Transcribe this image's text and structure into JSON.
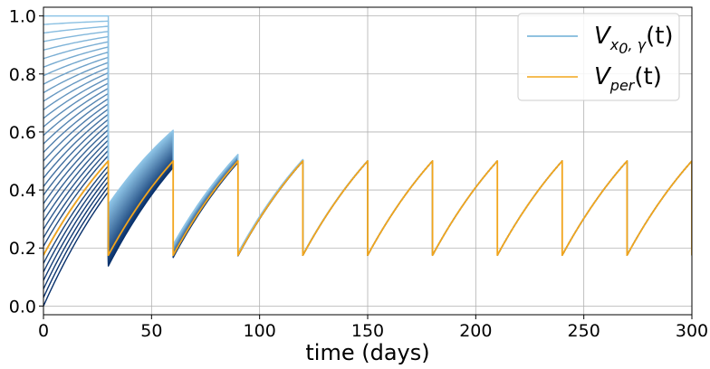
{
  "chart_data": {
    "type": "line",
    "xlabel": "time (days)",
    "ylabel": "",
    "xlim": [
      0,
      300
    ],
    "ylim": [
      -0.03,
      1.03
    ],
    "xticks": [
      0,
      50,
      100,
      150,
      200,
      250,
      300
    ],
    "xtick_labels": [
      "0",
      "50",
      "100",
      "150",
      "200",
      "250",
      "300"
    ],
    "yticks": [
      0.0,
      0.2,
      0.4,
      0.6,
      0.8,
      1.0
    ],
    "ytick_labels": [
      "0.0",
      "0.2",
      "0.4",
      "0.6",
      "0.8",
      "1.0"
    ],
    "grid": true,
    "legend_position": "top-right",
    "period_days": 30,
    "colors": {
      "family_light": "#8ec4e6",
      "family_dark": "#08306b",
      "per": "#f2a51c"
    },
    "series": [
      {
        "name": "V_{x0,γ}(t)",
        "legend_main": "V",
        "legend_sub": "x",
        "legend_subsub": "0",
        "legend_sub_rest": ", γ",
        "legend_tail": "(t)",
        "color": "#6baed6",
        "note": "family of 35 trajectories with initial values from 0.0 to 1.0; all converge to the periodic solution",
        "initial_values_range": [
          0.0,
          1.0
        ],
        "count": 35,
        "first_period_start_range": [
          0.0,
          0.92
        ],
        "first_period_end_range": [
          0.4,
          1.0
        ],
        "jump_lows": [
          {
            "x": 30,
            "y_range": [
              0.13,
              0.4
            ]
          },
          {
            "x": 60,
            "y_range": [
              0.15,
              0.3
            ]
          },
          {
            "x": 90,
            "y_range": [
              0.16,
              0.22
            ]
          },
          {
            "x": 120,
            "y_range": [
              0.16,
              0.2
            ]
          }
        ],
        "peak_highs": [
          {
            "x": 60,
            "y_range": [
              0.47,
              0.67
            ]
          },
          {
            "x": 90,
            "y_range": [
              0.48,
              0.55
            ]
          },
          {
            "x": 120,
            "y_range": [
              0.49,
              0.52
            ]
          }
        ]
      },
      {
        "name": "V_per(t)",
        "legend_main": "V",
        "legend_sub": "per",
        "legend_tail": "(t)",
        "color": "#f2a51c",
        "low": 0.175,
        "high": 0.5,
        "note": "periodic solution: rises from 0.175 to 0.5 over each 30-day period then resets"
      }
    ]
  }
}
